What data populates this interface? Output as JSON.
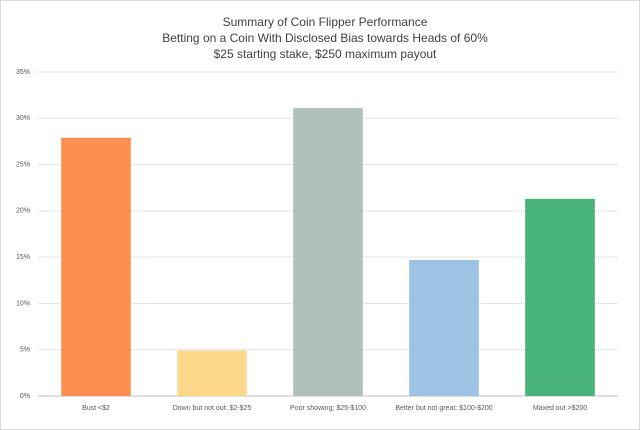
{
  "chart_data": {
    "type": "bar",
    "title": "Summary of Coin Flipper Performance",
    "subtitles": [
      "Betting on a Coin With Disclosed Bias towards Heads of 60%",
      "$25 starting stake, $250 maximum payout"
    ],
    "categories": [
      "Bust <$2",
      "Down but not out: $2-$25",
      "Poor showing: $25-$100",
      "Better but not great: $100-$200",
      "Maxed out >$200"
    ],
    "values": [
      27.9,
      4.9,
      31.1,
      14.7,
      21.3
    ],
    "colors": [
      "#ff8f50",
      "#fbd88b",
      "#afc0bb",
      "#9cc2e4",
      "#48b479"
    ],
    "ylim": [
      0,
      35
    ],
    "yticks": [
      {
        "value": 0,
        "label": "0%"
      },
      {
        "value": 5,
        "label": "5%"
      },
      {
        "value": 10,
        "label": "10%"
      },
      {
        "value": 15,
        "label": "15%"
      },
      {
        "value": 20,
        "label": "20%"
      },
      {
        "value": 25,
        "label": "25%"
      },
      {
        "value": 30,
        "label": "30%"
      },
      {
        "value": 35,
        "label": "35%"
      }
    ],
    "grid": true
  }
}
